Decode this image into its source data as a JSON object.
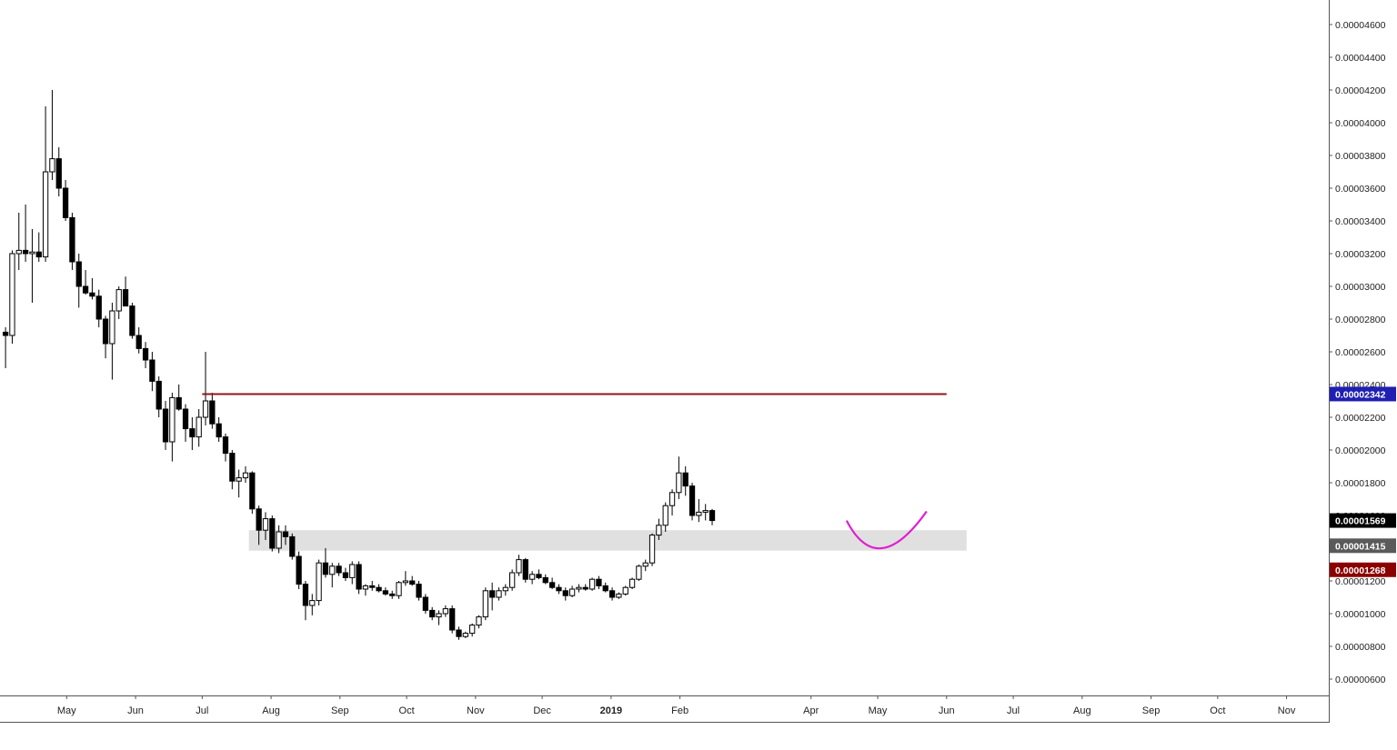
{
  "chart_data": {
    "type": "candlestick",
    "title": "",
    "xlabel": "",
    "ylabel": "",
    "ylim": [
      5e-06,
      4.75e-05
    ],
    "y_ticks": [
      "0.00000600",
      "0.00000800",
      "0.00001000",
      "0.00001200",
      "0.00001400",
      "0.00001600",
      "0.00001800",
      "0.00002000",
      "0.00002200",
      "0.00002400",
      "0.00002600",
      "0.00002800",
      "0.00003000",
      "0.00003200",
      "0.00003400",
      "0.00003600",
      "0.00003800",
      "0.00004000",
      "0.00004200",
      "0.00004400",
      "0.00004600"
    ],
    "x_ticks": [
      {
        "label": "May",
        "date": "2018-05-01"
      },
      {
        "label": "Jun",
        "date": "2018-06-01"
      },
      {
        "label": "Jul",
        "date": "2018-07-01"
      },
      {
        "label": "Aug",
        "date": "2018-08-01"
      },
      {
        "label": "Sep",
        "date": "2018-09-01"
      },
      {
        "label": "Oct",
        "date": "2018-10-01"
      },
      {
        "label": "Nov",
        "date": "2018-11-01"
      },
      {
        "label": "Dec",
        "date": "2018-12-01"
      },
      {
        "label": "2019",
        "date": "2019-01-01",
        "bold": true
      },
      {
        "label": "Feb",
        "date": "2019-02-01"
      },
      {
        "label": "Apr",
        "date": "2019-04-01"
      },
      {
        "label": "May",
        "date": "2019-05-01"
      },
      {
        "label": "Jun",
        "date": "2019-06-01"
      },
      {
        "label": "Jul",
        "date": "2019-07-01"
      },
      {
        "label": "Aug",
        "date": "2019-08-01"
      },
      {
        "label": "Sep",
        "date": "2019-09-01"
      },
      {
        "label": "Oct",
        "date": "2019-10-01"
      },
      {
        "label": "Nov",
        "date": "2019-11-01"
      }
    ],
    "x_range": [
      "2018-04-01",
      "2019-11-20"
    ],
    "grid": false,
    "price_labels": [
      {
        "text": "0.00002342",
        "value": 2.342e-05,
        "bg": "#1f1fb3",
        "fg": "#ffffff"
      },
      {
        "text": "0.00001569",
        "value": 1.569e-05,
        "bg": "#000000",
        "fg": "#ffffff"
      },
      {
        "text": "0.00001415",
        "value": 1.415e-05,
        "bg": "#5a5a5a",
        "fg": "#ffffff"
      },
      {
        "text": "0.00001268",
        "value": 1.268e-05,
        "bg": "#8b0000",
        "fg": "#ffffff"
      }
    ],
    "resistance_line": {
      "value": 2.342e-05,
      "from": "2018-07-01",
      "to": "2019-06-01",
      "color": "#8b1a1a"
    },
    "support_zone": {
      "low": 1.385e-05,
      "high": 1.51e-05,
      "from": "2018-07-22",
      "to": "2019-06-10",
      "color": "#e0e0e0"
    },
    "projection_curve": {
      "color": "#e020d0",
      "points": [
        {
          "date": "2019-04-17",
          "value": 1.569e-05
        },
        {
          "date": "2019-05-03",
          "value": 1.4e-05
        },
        {
          "date": "2019-05-23",
          "value": 1.625e-05
        }
      ]
    },
    "bull_color": "#ffffff",
    "bear_color": "#000000",
    "candle_start": "2018-04-02",
    "candle_interval_days": 3,
    "candles": [
      [
        2.72e-05,
        2.75e-05,
        2.5e-05,
        2.7e-05
      ],
      [
        2.7e-05,
        3.22e-05,
        2.65e-05,
        3.2e-05
      ],
      [
        3.2e-05,
        3.45e-05,
        3.1e-05,
        3.22e-05
      ],
      [
        3.22e-05,
        3.5e-05,
        3.15e-05,
        3.2e-05
      ],
      [
        3.2e-05,
        3.35e-05,
        2.9e-05,
        3.21e-05
      ],
      [
        3.21e-05,
        3.33e-05,
        3.15e-05,
        3.18e-05
      ],
      [
        3.18e-05,
        4.1e-05,
        3.15e-05,
        3.7e-05
      ],
      [
        3.7e-05,
        4.2e-05,
        3.65e-05,
        3.78e-05
      ],
      [
        3.78e-05,
        3.85e-05,
        3.55e-05,
        3.6e-05
      ],
      [
        3.6e-05,
        3.65e-05,
        3.4e-05,
        3.42e-05
      ],
      [
        3.42e-05,
        3.45e-05,
        3.1e-05,
        3.15e-05
      ],
      [
        3.15e-05,
        3.2e-05,
        2.87e-05,
        3e-05
      ],
      [
        3e-05,
        3.1e-05,
        2.95e-05,
        2.96e-05
      ],
      [
        2.96e-05,
        3.05e-05,
        2.92e-05,
        2.94e-05
      ],
      [
        2.94e-05,
        2.98e-05,
        2.75e-05,
        2.8e-05
      ],
      [
        2.8e-05,
        2.82e-05,
        2.56e-05,
        2.65e-05
      ],
      [
        2.65e-05,
        2.9e-05,
        2.43e-05,
        2.85e-05
      ],
      [
        2.85e-05,
        3e-05,
        2.8e-05,
        2.98e-05
      ],
      [
        2.98e-05,
        3.06e-05,
        2.9e-05,
        2.88e-05
      ],
      [
        2.88e-05,
        2.9e-05,
        2.68e-05,
        2.7e-05
      ],
      [
        2.7e-05,
        2.75e-05,
        2.59e-05,
        2.62e-05
      ],
      [
        2.62e-05,
        2.66e-05,
        2.5e-05,
        2.55e-05
      ],
      [
        2.55e-05,
        2.6e-05,
        2.36e-05,
        2.42e-05
      ],
      [
        2.42e-05,
        2.45e-05,
        2.2e-05,
        2.25e-05
      ],
      [
        2.25e-05,
        2.3e-05,
        2e-05,
        2.05e-05
      ],
      [
        2.05e-05,
        2.35e-05,
        1.93e-05,
        2.32e-05
      ],
      [
        2.32e-05,
        2.4e-05,
        2.24e-05,
        2.25e-05
      ],
      [
        2.25e-05,
        2.28e-05,
        2.05e-05,
        2.13e-05
      ],
      [
        2.13e-05,
        2.2e-05,
        2e-05,
        2.08e-05
      ],
      [
        2.08e-05,
        2.25e-05,
        2.02e-05,
        2.2e-05
      ],
      [
        2.2e-05,
        2.6e-05,
        2.15e-05,
        2.3e-05
      ],
      [
        2.3e-05,
        2.35e-05,
        2.13e-05,
        2.16e-05
      ],
      [
        2.16e-05,
        2.2e-05,
        2.05e-05,
        2.08e-05
      ],
      [
        2.08e-05,
        2.1e-05,
        1.93e-05,
        1.98e-05
      ],
      [
        1.98e-05,
        2e-05,
        1.76e-05,
        1.81e-05
      ],
      [
        1.81e-05,
        1.88e-05,
        1.71e-05,
        1.83e-05
      ],
      [
        1.83e-05,
        1.9e-05,
        1.8e-05,
        1.86e-05
      ],
      [
        1.86e-05,
        1.87e-05,
        1.61e-05,
        1.64e-05
      ],
      [
        1.64e-05,
        1.66e-05,
        1.42e-05,
        1.51e-05
      ],
      [
        1.51e-05,
        1.62e-05,
        1.45e-05,
        1.58e-05
      ],
      [
        1.58e-05,
        1.6e-05,
        1.38e-05,
        1.4e-05
      ],
      [
        1.4e-05,
        1.54e-05,
        1.37e-05,
        1.5e-05
      ],
      [
        1.5e-05,
        1.54e-05,
        1.42e-05,
        1.47e-05
      ],
      [
        1.47e-05,
        1.49e-05,
        1.33e-05,
        1.35e-05
      ],
      [
        1.35e-05,
        1.38e-05,
        1.15e-05,
        1.18e-05
      ],
      [
        1.18e-05,
        1.2e-05,
        9.6e-06,
        1.05e-05
      ],
      [
        1.05e-05,
        1.12e-05,
        9.9e-06,
        1.08e-05
      ],
      [
        1.08e-05,
        1.33e-05,
        1.05e-05,
        1.31e-05
      ],
      [
        1.31e-05,
        1.4e-05,
        1.22e-05,
        1.24e-05
      ],
      [
        1.24e-05,
        1.31e-05,
        1.16e-05,
        1.29e-05
      ],
      [
        1.29e-05,
        1.31e-05,
        1.23e-05,
        1.25e-05
      ],
      [
        1.25e-05,
        1.28e-05,
        1.2e-05,
        1.22e-05
      ],
      [
        1.22e-05,
        1.32e-05,
        1.18e-05,
        1.3e-05
      ],
      [
        1.3e-05,
        1.32e-05,
        1.12e-05,
        1.15e-05
      ],
      [
        1.15e-05,
        1.18e-05,
        1.11e-05,
        1.17e-05
      ],
      [
        1.17e-05,
        1.2e-05,
        1.14e-05,
        1.16e-05
      ],
      [
        1.16e-05,
        1.18e-05,
        1.13e-05,
        1.14e-05
      ],
      [
        1.14e-05,
        1.16e-05,
        1.11e-05,
        1.12e-05
      ],
      [
        1.12e-05,
        1.14e-05,
        1.09e-05,
        1.11e-05
      ],
      [
        1.11e-05,
        1.2e-05,
        1.09e-05,
        1.19e-05
      ],
      [
        1.19e-05,
        1.26e-05,
        1.17e-05,
        1.2e-05
      ],
      [
        1.2e-05,
        1.23e-05,
        1.17e-05,
        1.18e-05
      ],
      [
        1.18e-05,
        1.2e-05,
        1.08e-05,
        1.1e-05
      ],
      [
        1.1e-05,
        1.12e-05,
        1e-05,
        1.02e-05
      ],
      [
        1.02e-05,
        1.04e-05,
        9.6e-06,
        9.8e-06
      ],
      [
        9.8e-06,
        1.02e-05,
        9.3e-06,
        1e-05
      ],
      [
        1e-05,
        1.05e-05,
        9.8e-06,
        1.03e-05
      ],
      [
        1.03e-05,
        1.05e-05,
        8.8e-06,
        9e-06
      ],
      [
        9e-06,
        9.2e-06,
        8.4e-06,
        8.6e-06
      ],
      [
        8.6e-06,
        8.9e-06,
        8.5e-06,
        8.8e-06
      ],
      [
        8.8e-06,
        9.4e-06,
        8.6e-06,
        9.3e-06
      ],
      [
        9.3e-06,
        9.9e-06,
        9.1e-06,
        9.8e-06
      ],
      [
        9.8e-06,
        1.16e-05,
        9.6e-06,
        1.14e-05
      ],
      [
        1.14e-05,
        1.19e-05,
        1.02e-05,
        1.1e-05
      ],
      [
        1.1e-05,
        1.16e-05,
        1.08e-05,
        1.14e-05
      ],
      [
        1.14e-05,
        1.18e-05,
        1.11e-05,
        1.16e-05
      ],
      [
        1.16e-05,
        1.27e-05,
        1.14e-05,
        1.25e-05
      ],
      [
        1.25e-05,
        1.36e-05,
        1.23e-05,
        1.33e-05
      ],
      [
        1.33e-05,
        1.34e-05,
        1.19e-05,
        1.21e-05
      ],
      [
        1.21e-05,
        1.26e-05,
        1.18e-05,
        1.24e-05
      ],
      [
        1.24e-05,
        1.27e-05,
        1.21e-05,
        1.22e-05
      ],
      [
        1.22e-05,
        1.24e-05,
        1.18e-05,
        1.19e-05
      ],
      [
        1.19e-05,
        1.22e-05,
        1.15e-05,
        1.16e-05
      ],
      [
        1.16e-05,
        1.18e-05,
        1.12e-05,
        1.14e-05
      ],
      [
        1.14e-05,
        1.16e-05,
        1.08e-05,
        1.11e-05
      ],
      [
        1.11e-05,
        1.17e-05,
        1.1e-05,
        1.15e-05
      ],
      [
        1.15e-05,
        1.18e-05,
        1.13e-05,
        1.16e-05
      ],
      [
        1.16e-05,
        1.18e-05,
        1.14e-05,
        1.15e-05
      ],
      [
        1.15e-05,
        1.22e-05,
        1.14e-05,
        1.21e-05
      ],
      [
        1.21e-05,
        1.23e-05,
        1.15e-05,
        1.17e-05
      ],
      [
        1.17e-05,
        1.19e-05,
        1.13e-05,
        1.14e-05
      ],
      [
        1.14e-05,
        1.16e-05,
        1.08e-05,
        1.1e-05
      ],
      [
        1.1e-05,
        1.13e-05,
        1.09e-05,
        1.12e-05
      ],
      [
        1.12e-05,
        1.17e-05,
        1.11e-05,
        1.16e-05
      ],
      [
        1.16e-05,
        1.22e-05,
        1.15e-05,
        1.21e-05
      ],
      [
        1.21e-05,
        1.3e-05,
        1.2e-05,
        1.29e-05
      ],
      [
        1.29e-05,
        1.33e-05,
        1.26e-05,
        1.31e-05
      ],
      [
        1.31e-05,
        1.49e-05,
        1.29e-05,
        1.48e-05
      ],
      [
        1.48e-05,
        1.58e-05,
        1.45e-05,
        1.54e-05
      ],
      [
        1.54e-05,
        1.68e-05,
        1.5e-05,
        1.66e-05
      ],
      [
        1.66e-05,
        1.76e-05,
        1.6e-05,
        1.74e-05
      ],
      [
        1.74e-05,
        1.96e-05,
        1.7e-05,
        1.86e-05
      ],
      [
        1.86e-05,
        1.9e-05,
        1.72e-05,
        1.78e-05
      ],
      [
        1.78e-05,
        1.8e-05,
        1.57e-05,
        1.6e-05
      ],
      [
        1.6e-05,
        1.7e-05,
        1.56e-05,
        1.62e-05
      ],
      [
        1.62e-05,
        1.67e-05,
        1.57e-05,
        1.63e-05
      ],
      [
        1.63e-05,
        1.64e-05,
        1.54e-05,
        1.569e-05
      ]
    ]
  }
}
